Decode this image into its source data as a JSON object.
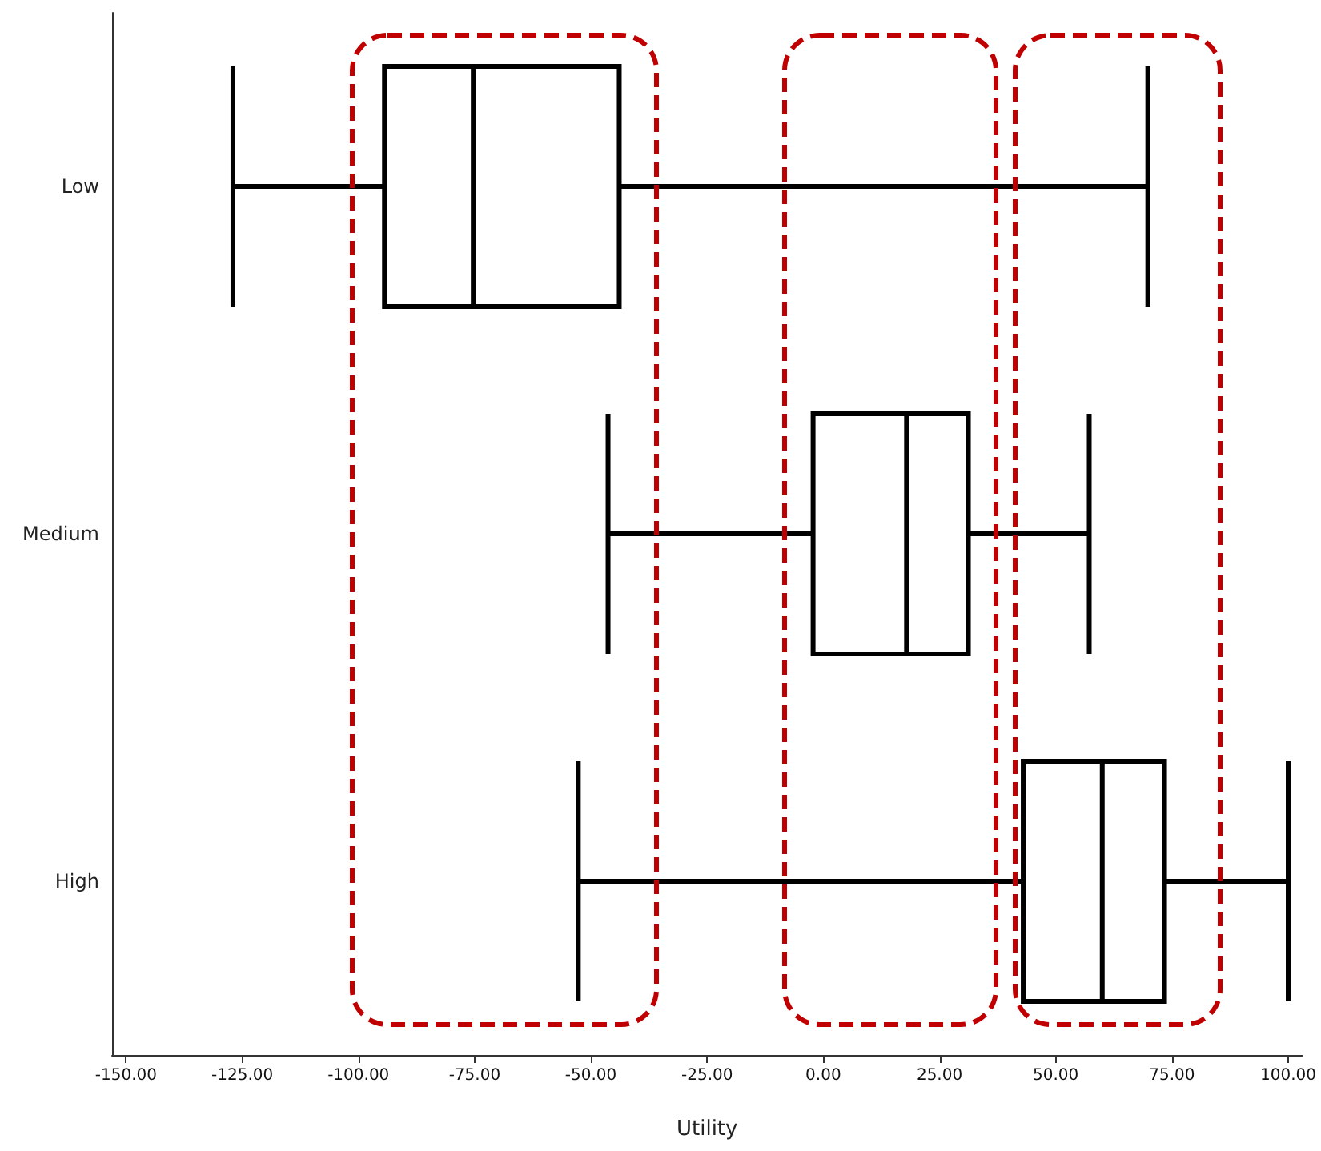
{
  "chart_data": {
    "type": "box",
    "orientation": "horizontal",
    "xlabel": "Utility",
    "categories": [
      "Low",
      "Medium",
      "High"
    ],
    "boxes": [
      {
        "low": -127,
        "q1": -94.4,
        "median": -75.3,
        "q3": -43.9,
        "high": 69.8
      },
      {
        "low": -46.3,
        "q1": -2.2,
        "median": 17.9,
        "q3": 31.2,
        "high": 57.2
      },
      {
        "low": -52.7,
        "q1": 43.0,
        "median": 60.0,
        "q3": 73.4,
        "high": 100
      }
    ],
    "color": "#000000",
    "xlim": [
      -153,
      103
    ],
    "xticks": [
      {
        "value": -150,
        "label": "-150.00"
      },
      {
        "value": -125,
        "label": "-125.00"
      },
      {
        "value": -100,
        "label": "-100.00"
      },
      {
        "value": -75,
        "label": "-75.00"
      },
      {
        "value": -50,
        "label": "-50.00"
      },
      {
        "value": -25,
        "label": "-25.00"
      },
      {
        "value": 0,
        "label": "0.00"
      },
      {
        "value": 25,
        "label": "25.00"
      },
      {
        "value": 50,
        "label": "50.00"
      },
      {
        "value": 75,
        "label": "75.00"
      },
      {
        "value": 100,
        "label": "100.00"
      }
    ],
    "grid": false
  }
}
